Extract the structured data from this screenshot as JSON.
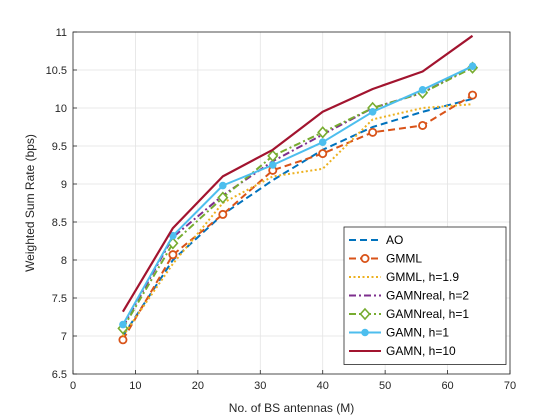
{
  "chart_data": {
    "type": "line",
    "title": "",
    "xlabel": "No. of BS antennas (M)",
    "ylabel": "Weighted Sum Rate (bps)",
    "xlim": [
      0,
      70
    ],
    "ylim": [
      6.5,
      11
    ],
    "xticks": [
      "0",
      "10",
      "20",
      "30",
      "40",
      "50",
      "60",
      "70"
    ],
    "yticks": [
      "6.5",
      "7",
      "7.5",
      "8",
      "8.5",
      "9",
      "9.5",
      "10",
      "10.5",
      "11"
    ],
    "grid": true,
    "legend_position": "bottom-right",
    "x": [
      8,
      16,
      24,
      32,
      40,
      48,
      56,
      64
    ],
    "series": [
      {
        "name": "AO",
        "color": "#0072BD",
        "style": "dashed",
        "marker": "none",
        "values": [
          7.0,
          8.0,
          8.6,
          9.05,
          9.45,
          9.75,
          9.95,
          10.12
        ]
      },
      {
        "name": "GMML",
        "color": "#D95319",
        "style": "dashed",
        "marker": "circle",
        "values": [
          6.95,
          8.07,
          8.6,
          9.18,
          9.4,
          9.68,
          9.77,
          10.17
        ]
      },
      {
        "name": "GMML, h=1.9",
        "color": "#EDB120",
        "style": "dotted",
        "marker": "none",
        "values": [
          7.0,
          7.95,
          8.75,
          9.1,
          9.2,
          9.85,
          10.0,
          10.05
        ]
      },
      {
        "name": "GAMNreal, h=2",
        "color": "#7E2F8E",
        "style": "dashdot",
        "marker": "none",
        "values": [
          7.12,
          8.3,
          8.85,
          9.3,
          9.65,
          10.0,
          10.2,
          10.55
        ]
      },
      {
        "name": "GAMNreal, h=1",
        "color": "#77AC30",
        "style": "dashdot",
        "marker": "diamond",
        "values": [
          7.1,
          8.22,
          8.82,
          9.37,
          9.68,
          10.0,
          10.2,
          10.53
        ]
      },
      {
        "name": "GAMN, h=1",
        "color": "#4DBEEE",
        "style": "solid",
        "marker": "dot",
        "values": [
          7.15,
          8.32,
          8.98,
          9.25,
          9.55,
          9.95,
          10.24,
          10.55
        ]
      },
      {
        "name": "GAMN, h=10",
        "color": "#A2142F",
        "style": "solid",
        "marker": "none",
        "values": [
          7.32,
          8.42,
          9.1,
          9.45,
          9.95,
          10.25,
          10.48,
          10.95
        ]
      }
    ]
  }
}
